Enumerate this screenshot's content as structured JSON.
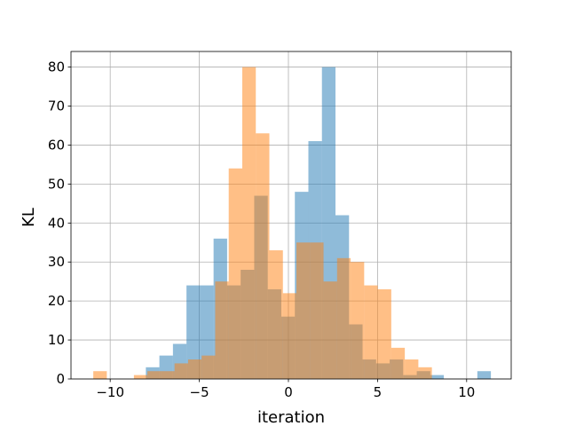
{
  "chart_data": {
    "type": "bar",
    "title": "",
    "xlabel": "iteration",
    "ylabel": "KL",
    "xlim": [
      -12.2,
      12.5
    ],
    "ylim": [
      0,
      84
    ],
    "grid": true,
    "x_ticks": [
      -10,
      -5,
      0,
      5,
      10
    ],
    "y_ticks": [
      0,
      10,
      20,
      30,
      40,
      50,
      60,
      70,
      80
    ],
    "bin_width": 0.76,
    "series": [
      {
        "color": "#1f77b4",
        "alpha": 0.5,
        "bins": [
          {
            "x0": -8.0,
            "count": 3
          },
          {
            "x0": -7.24,
            "count": 6
          },
          {
            "x0": -6.48,
            "count": 9
          },
          {
            "x0": -5.72,
            "count": 24
          },
          {
            "x0": -4.96,
            "count": 24
          },
          {
            "x0": -4.2,
            "count": 36
          },
          {
            "x0": -3.44,
            "count": 24
          },
          {
            "x0": -2.68,
            "count": 28
          },
          {
            "x0": -1.92,
            "count": 47
          },
          {
            "x0": -1.16,
            "count": 23
          },
          {
            "x0": -0.4,
            "count": 16
          },
          {
            "x0": 0.36,
            "count": 48
          },
          {
            "x0": 1.12,
            "count": 61
          },
          {
            "x0": 1.88,
            "count": 80
          },
          {
            "x0": 2.64,
            "count": 42
          },
          {
            "x0": 3.4,
            "count": 14
          },
          {
            "x0": 4.16,
            "count": 5
          },
          {
            "x0": 4.92,
            "count": 4
          },
          {
            "x0": 5.68,
            "count": 5
          },
          {
            "x0": 6.44,
            "count": 1
          },
          {
            "x0": 7.2,
            "count": 2
          },
          {
            "x0": 7.96,
            "count": 1
          },
          {
            "x0": 10.6,
            "count": 2
          }
        ]
      },
      {
        "color": "#ff7f0e",
        "alpha": 0.5,
        "bins": [
          {
            "x0": -10.95,
            "count": 2
          },
          {
            "x0": -8.67,
            "count": 1
          },
          {
            "x0": -7.91,
            "count": 2
          },
          {
            "x0": -7.15,
            "count": 2
          },
          {
            "x0": -6.39,
            "count": 4
          },
          {
            "x0": -5.63,
            "count": 5
          },
          {
            "x0": -4.87,
            "count": 6
          },
          {
            "x0": -4.11,
            "count": 25
          },
          {
            "x0": -3.35,
            "count": 54
          },
          {
            "x0": -2.59,
            "count": 80
          },
          {
            "x0": -1.83,
            "count": 63
          },
          {
            "x0": -1.07,
            "count": 33
          },
          {
            "x0": -0.31,
            "count": 22
          },
          {
            "x0": 0.45,
            "count": 35
          },
          {
            "x0": 1.21,
            "count": 35
          },
          {
            "x0": 1.97,
            "count": 25
          },
          {
            "x0": 2.73,
            "count": 31
          },
          {
            "x0": 3.49,
            "count": 30
          },
          {
            "x0": 4.25,
            "count": 24
          },
          {
            "x0": 5.01,
            "count": 23
          },
          {
            "x0": 5.77,
            "count": 8
          },
          {
            "x0": 6.53,
            "count": 5
          },
          {
            "x0": 7.29,
            "count": 3
          }
        ]
      }
    ]
  }
}
